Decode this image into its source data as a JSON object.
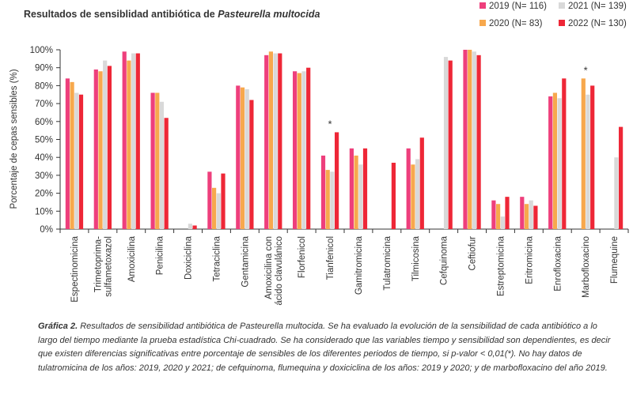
{
  "chart_data": {
    "type": "bar",
    "title_prefix": "Resultados de sensiblidad antibiótica de ",
    "title_italic": "Pasteurella multocida",
    "ylabel": "Porcentaje de cepas sensibles (%)",
    "xlabel": "",
    "ylim": [
      0,
      100
    ],
    "yticks": [
      0,
      10,
      20,
      30,
      40,
      50,
      60,
      70,
      80,
      90,
      100
    ],
    "ytick_labels": [
      "0%",
      "10%",
      "20%",
      "30%",
      "40%",
      "50%",
      "60%",
      "70%",
      "80%",
      "90%",
      "100%"
    ],
    "grid": false,
    "legend_position": "top-right",
    "categories": [
      [
        "Espectinomicina"
      ],
      [
        "Trimetoprima-",
        "sulfametoxazol"
      ],
      [
        "Amoxicilina"
      ],
      [
        "Penicilina"
      ],
      [
        "Doxiciclina"
      ],
      [
        "Tetraciclina"
      ],
      [
        "Gentamicina"
      ],
      [
        "Amoxicilina con",
        "ácido clavulánico"
      ],
      [
        "Florfenicol"
      ],
      [
        "Tianfenicol"
      ],
      [
        "Gamitromicina"
      ],
      [
        "Tulatromicina"
      ],
      [
        "Tilmicosina"
      ],
      [
        "Cefquinoma"
      ],
      [
        "Ceftiofur"
      ],
      [
        "Estreptomicina"
      ],
      [
        "Eritromicina"
      ],
      [
        "Enrofloxacina"
      ],
      [
        "Marbofloxacino"
      ],
      [
        "Flumequine"
      ]
    ],
    "series": [
      {
        "name": "2019 (N= 116)",
        "color": "#ee3f7c",
        "values": [
          84,
          89,
          99,
          76,
          null,
          32,
          80,
          97,
          88,
          41,
          45,
          null,
          45,
          null,
          100,
          16,
          18,
          74,
          null,
          null
        ]
      },
      {
        "name": "2020 (N= 83)",
        "color": "#f7a84d",
        "values": [
          82,
          88,
          94,
          76,
          null,
          23,
          79,
          99,
          87,
          33,
          41,
          null,
          36,
          null,
          100,
          14,
          14,
          76,
          84,
          null
        ]
      },
      {
        "name": "2021 (N= 139)",
        "color": "#d9d9d9",
        "values": [
          76,
          94,
          98,
          71,
          3,
          20,
          78,
          98,
          88,
          32,
          36,
          null,
          39,
          96,
          99,
          7,
          16,
          73,
          75,
          40
        ]
      },
      {
        "name": "2022 (N= 130)",
        "color": "#ee2737",
        "values": [
          75,
          91,
          98,
          62,
          2,
          31,
          72,
          98,
          90,
          54,
          45,
          37,
          51,
          94,
          97,
          18,
          13,
          84,
          80,
          57
        ]
      }
    ],
    "significance_markers": [
      {
        "category_index": 9,
        "label": "*"
      },
      {
        "category_index": 18,
        "label": "*"
      }
    ]
  },
  "caption": {
    "label": "Gráfica 2.",
    "text": " Resultados de sensibilidad antibiótica de Pasteurella multocida. Se ha evaluado la evolución de la sensibilidad de cada antibiótico a lo largo del tiempo mediante la prueba estadística Chi-cuadrado. Se ha considerado que las variables tiempo y sensibilidad son dependientes, es decir que existen diferencias significativas entre porcentaje de sensibles de los diferentes periodos de tiempo, si p-valor < 0,01(*). No hay datos de tulatromicina de los años: 2019, 2020 y 2021; de cefquinoma, flumequina y doxiciclina de los años: 2019 y 2020; y de marbofloxacino del año 2019."
  }
}
